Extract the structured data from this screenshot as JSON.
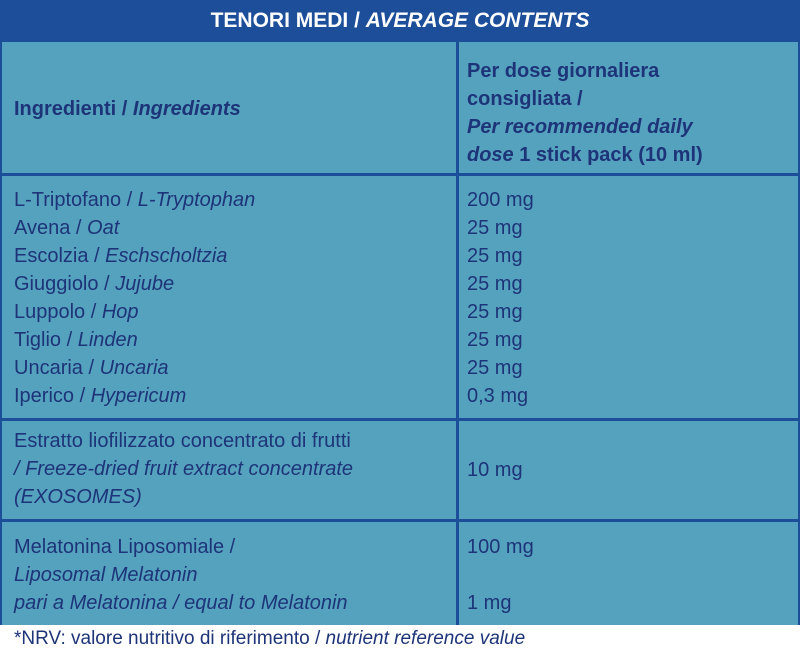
{
  "header": {
    "title_it": "TENORI MEDI /",
    "title_en": "AVERAGE CONTENTS"
  },
  "columns": {
    "ingredients_it": "Ingredienti /",
    "ingredients_en": "Ingredients",
    "dose_line1": "Per dose giornaliera",
    "dose_line2": "consigliata /",
    "dose_line3_en": "Per recommended daily",
    "dose_line4_en": "dose",
    "dose_line4_rest": "1 stick pack (10 ml)"
  },
  "rows": [
    {
      "it": "L-Triptofano /",
      "en": "L-Tryptophan",
      "amount": "200 mg"
    },
    {
      "it": "Avena /",
      "en": "Oat",
      "amount": "25 mg"
    },
    {
      "it": "Escolzia /",
      "en": "Eschscholtzia",
      "amount": "25 mg"
    },
    {
      "it": "Giuggiolo /",
      "en": "Jujube",
      "amount": "25 mg"
    },
    {
      "it": "Luppolo /",
      "en": "Hop",
      "amount": "25 mg"
    },
    {
      "it": "Tiglio /",
      "en": "Linden",
      "amount": "25 mg"
    },
    {
      "it": "Uncaria /",
      "en": "Uncaria",
      "amount": "25 mg"
    },
    {
      "it": "Iperico /",
      "en": "Hypericum",
      "amount": "0,3 mg"
    }
  ],
  "extract": {
    "line1": "Estratto liofilizzato concentrato di frutti",
    "line2": "/ Freeze-dried fruit extract concentrate",
    "line3": "(EXOSOMES)",
    "amount": "10 mg"
  },
  "melatonin": {
    "line1": "Melatonina Liposomiale /",
    "line2": "Liposomal Melatonin",
    "line3_it": "pari a Melatonina /",
    "line3_en": "equal to Melatonin",
    "amount1": "100 mg",
    "amount2": "1 mg"
  },
  "footnote": {
    "it": "*NRV: valore nutritivo di riferimento /",
    "en": "nutrient reference value"
  }
}
